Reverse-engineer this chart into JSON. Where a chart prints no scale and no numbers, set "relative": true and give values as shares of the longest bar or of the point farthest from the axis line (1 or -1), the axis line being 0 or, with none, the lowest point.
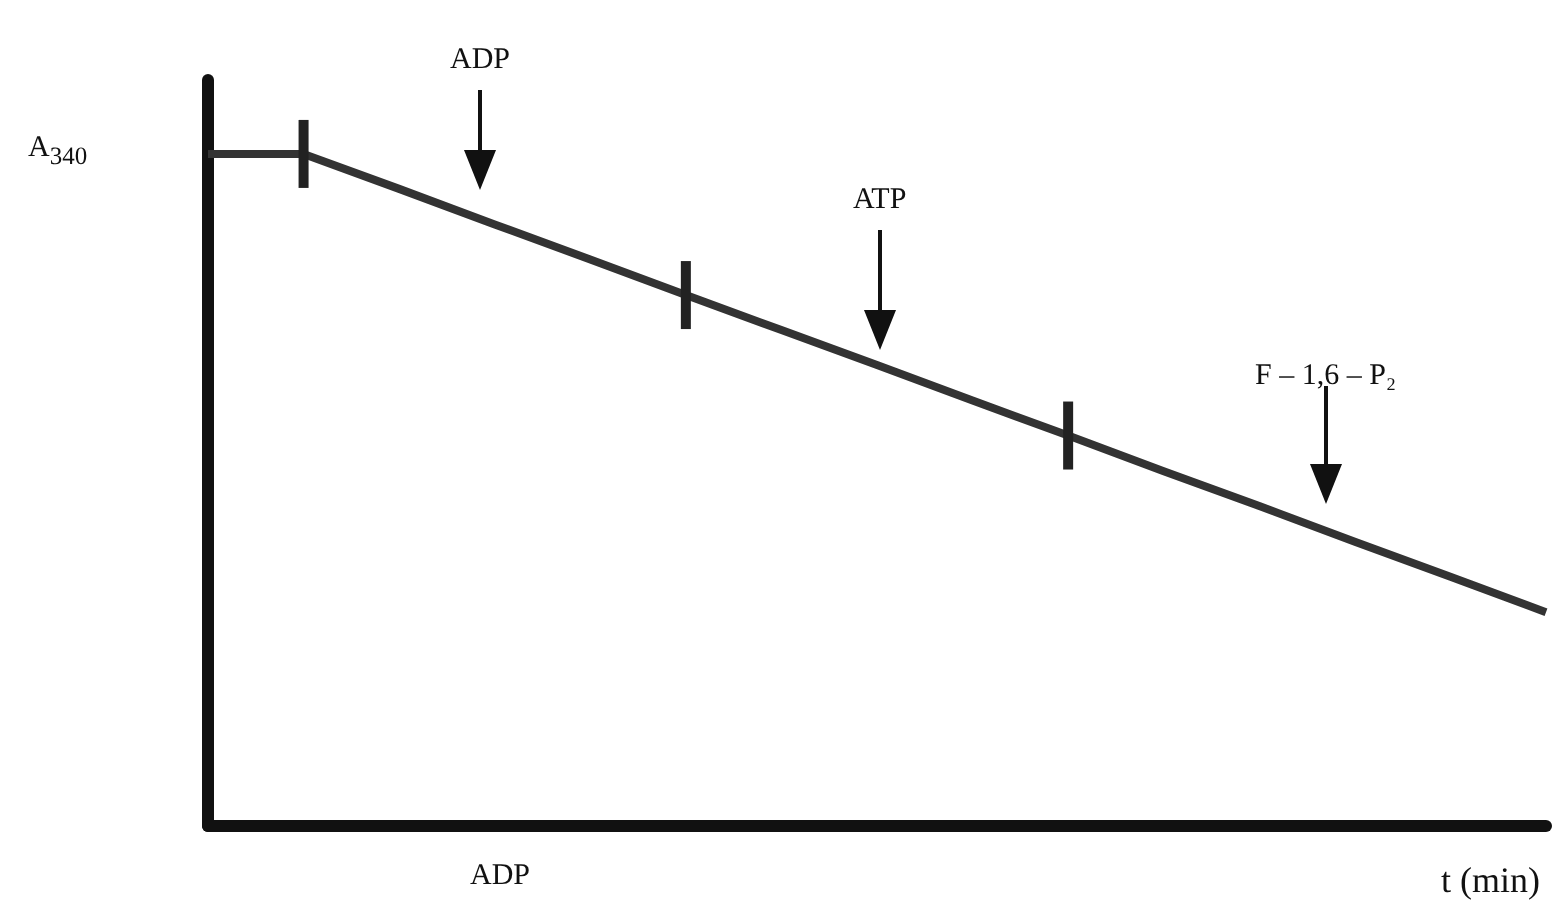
{
  "chart_data": {
    "type": "line",
    "relative": true,
    "xlabel": "t (min)",
    "ylabel": "A$_{340}$",
    "categories": [
      null,
      null,
      null,
      null,
      null,
      null,
      null,
      null,
      null,
      null,
      null,
      null,
      null,
      null,
      null
    ],
    "series": [
      {
        "color": "#333333",
        "values": [
          1,
          1,
          0.948,
          0.895,
          0.843,
          0.79,
          0.738,
          0.686,
          0.633,
          0.581,
          0.528,
          0.476,
          0.423,
          0.371,
          0.318
        ]
      }
    ],
    "annotations": [
      "ADP",
      "ATP",
      "F – 1,6 – P₂",
      "ADP"
    ],
    "marker": "none",
    "line_style": "solid"
  }
}
